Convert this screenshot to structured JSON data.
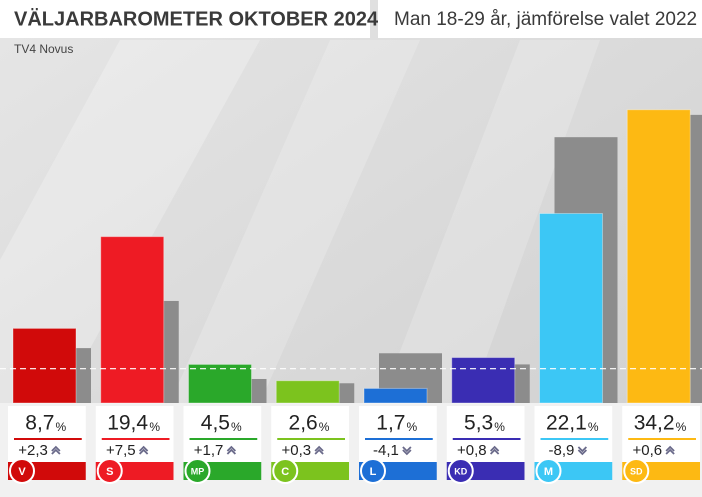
{
  "chart_data": {
    "type": "bar",
    "title": "VÄLJARBAROMETER OKTOBER 2024",
    "subtitle": "Man 18-29 år, jämförelse valet 2022",
    "source": "TV4 Novus",
    "unit": "%",
    "categories": [
      "V",
      "S",
      "MP",
      "C",
      "L",
      "KD",
      "M",
      "SD"
    ],
    "values": [
      8.7,
      19.4,
      4.5,
      2.6,
      1.7,
      5.3,
      22.1,
      34.2
    ],
    "value_labels": [
      "8,7",
      "19,4",
      "4,5",
      "2,6",
      "1,7",
      "5,3",
      "22,1",
      "34,2"
    ],
    "changes": [
      2.3,
      7.5,
      1.7,
      0.3,
      -4.1,
      0.8,
      -8.9,
      0.6
    ],
    "change_labels": [
      "+2,3",
      "+7,5",
      "+1,7",
      "+0,3",
      "-4,1",
      "+0,8",
      "-8,9",
      "+0,6"
    ],
    "previous_values": [
      6.4,
      11.9,
      2.8,
      2.3,
      5.8,
      4.5,
      31.0,
      33.6
    ],
    "previous_color": "#8c8c8c",
    "colors": [
      "#d10a0a",
      "#ee1b24",
      "#2aa82a",
      "#7cc31e",
      "#1d6fd6",
      "#3a2db3",
      "#3cc7f5",
      "#fdb913"
    ],
    "threshold": 4,
    "ylim": [
      0,
      40
    ]
  }
}
